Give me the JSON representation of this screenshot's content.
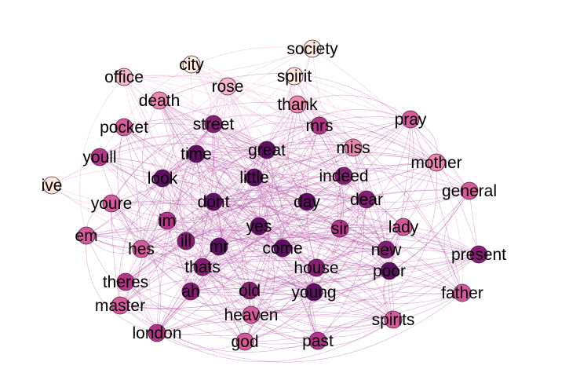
{
  "graph": {
    "palette": {
      "edge": "#b04aa0",
      "edge_light": "#e7a9cf",
      "levels": [
        "#fde8dc",
        "#f6b7cb",
        "#ef86ad",
        "#d65a9b",
        "#b53388",
        "#861d75",
        "#5e0f63"
      ]
    },
    "nodes": [
      {
        "id": "society",
        "label": "society",
        "level": 0
      },
      {
        "id": "city",
        "label": "city",
        "level": 0
      },
      {
        "id": "spirit",
        "label": "spirit",
        "level": 0
      },
      {
        "id": "office",
        "label": "office",
        "level": 1
      },
      {
        "id": "rose",
        "label": "rose",
        "level": 1
      },
      {
        "id": "death",
        "label": "death",
        "level": 2
      },
      {
        "id": "thank",
        "label": "thank",
        "level": 2
      },
      {
        "id": "pocket",
        "label": "pocket",
        "level": 3
      },
      {
        "id": "street",
        "label": "street",
        "level": 5
      },
      {
        "id": "mrs",
        "label": "mrs",
        "level": 4
      },
      {
        "id": "pray",
        "label": "pray",
        "level": 3
      },
      {
        "id": "youll",
        "label": "youll",
        "level": 4
      },
      {
        "id": "time",
        "label": "time",
        "level": 6
      },
      {
        "id": "great",
        "label": "great",
        "level": 6
      },
      {
        "id": "miss",
        "label": "miss",
        "level": 2
      },
      {
        "id": "mother",
        "label": "mother",
        "level": 2
      },
      {
        "id": "ive",
        "label": "ive",
        "level": 0
      },
      {
        "id": "look",
        "label": "look",
        "level": 6
      },
      {
        "id": "little",
        "label": "little",
        "level": 6
      },
      {
        "id": "indeed",
        "label": "indeed",
        "level": 5
      },
      {
        "id": "general",
        "label": "general",
        "level": 3
      },
      {
        "id": "youre",
        "label": "youre",
        "level": 3
      },
      {
        "id": "dont",
        "label": "dont",
        "level": 6
      },
      {
        "id": "day",
        "label": "day",
        "level": 6
      },
      {
        "id": "dear",
        "label": "dear",
        "level": 5
      },
      {
        "id": "im",
        "label": "im",
        "level": 4
      },
      {
        "id": "em",
        "label": "em",
        "level": 3
      },
      {
        "id": "yes",
        "label": "yes",
        "level": 6
      },
      {
        "id": "lady",
        "label": "lady",
        "level": 3
      },
      {
        "id": "sir",
        "label": "sir",
        "level": 4
      },
      {
        "id": "ill",
        "label": "ill",
        "level": 5
      },
      {
        "id": "mr",
        "label": "mr",
        "level": 6
      },
      {
        "id": "hes",
        "label": "hes",
        "level": 3
      },
      {
        "id": "come",
        "label": "come",
        "level": 6
      },
      {
        "id": "new",
        "label": "new",
        "level": 5
      },
      {
        "id": "present",
        "label": "present",
        "level": 5
      },
      {
        "id": "thats",
        "label": "thats",
        "level": 5
      },
      {
        "id": "house",
        "label": "house",
        "level": 5
      },
      {
        "id": "poor",
        "label": "poor",
        "level": 6
      },
      {
        "id": "theres",
        "label": "theres",
        "level": 4
      },
      {
        "id": "ah",
        "label": "ah",
        "level": 5
      },
      {
        "id": "old",
        "label": "old",
        "level": 5
      },
      {
        "id": "young",
        "label": "young",
        "level": 6
      },
      {
        "id": "father",
        "label": "father",
        "level": 3
      },
      {
        "id": "master",
        "label": "master",
        "level": 3
      },
      {
        "id": "heaven",
        "label": "heaven",
        "level": 3
      },
      {
        "id": "spirits",
        "label": "spirits",
        "level": 3
      },
      {
        "id": "london",
        "label": "london",
        "level": 4
      },
      {
        "id": "god",
        "label": "god",
        "level": 3
      },
      {
        "id": "past",
        "label": "past",
        "level": 4
      }
    ]
  }
}
